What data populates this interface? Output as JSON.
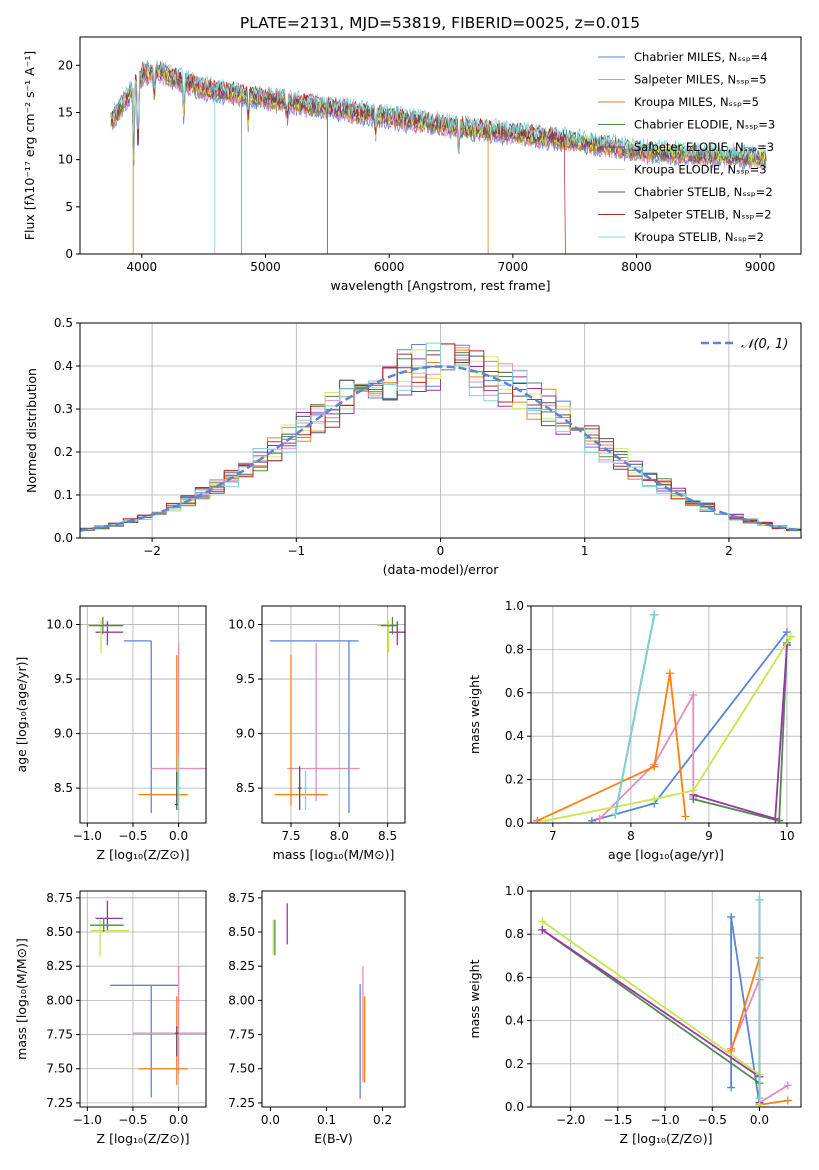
{
  "figure": {
    "title": "PLATE=2131, MJD=53819, FIBERID=0025, z=0.015"
  },
  "chart_data": [
    {
      "id": "spectrum",
      "type": "line",
      "xlabel": "wavelength [Angstrom, rest frame]",
      "ylabel": "Flux [fλ10⁻¹⁷ erg cm⁻² s⁻¹ A⁻¹]",
      "xlim": [
        3500,
        9330
      ],
      "ylim": [
        0,
        23
      ],
      "xticks": [
        4000,
        5000,
        6000,
        7000,
        8000,
        9000
      ],
      "yticks": [
        0,
        5,
        10,
        15,
        20
      ],
      "grid": false,
      "legend": "top-right",
      "series": [
        {
          "name": "Chabrier MILES, Nₛₛₚ=4",
          "color": "#5b84d6"
        },
        {
          "name": "Salpeter MILES, Nₛₛₚ=5",
          "color": "#e88bbd"
        },
        {
          "name": "Kroupa MILES, Nₛₛₚ=5",
          "color": "#c8842a"
        },
        {
          "name": "Chabrier ELODIE, Nₛₛₚ=3",
          "color": "#4d8b4d"
        },
        {
          "name": "Salpeter ELODIE, Nₛₛₚ=3",
          "color": "#9b35a8"
        },
        {
          "name": "Kroupa ELODIE, Nₛₛₚ=3",
          "color": "#e0e64a"
        },
        {
          "name": "Chabrier STELIB, Nₛₛₚ=2",
          "color": "#555555"
        },
        {
          "name": "Salpeter STELIB, Nₛₛₚ=2",
          "color": "#b22a2a"
        },
        {
          "name": "Kroupa STELIB, Nₛₛₚ=2",
          "color": "#7fd3d9"
        }
      ],
      "data": {
        "x": [
          3750,
          4000,
          4100,
          4500,
          5000,
          5500,
          6000,
          6500,
          7000,
          7500,
          8000,
          8500,
          9050
        ],
        "y": [
          14.0,
          19.0,
          19.5,
          17.5,
          16.5,
          15.5,
          14.5,
          13.5,
          12.8,
          12.0,
          11.0,
          10.5,
          10.2
        ]
      }
    },
    {
      "id": "residuals",
      "type": "line",
      "xlabel": "(data-model)/error",
      "ylabel": "Normed distribution",
      "xlim": [
        -2.5,
        2.5
      ],
      "ylim": [
        0,
        0.5
      ],
      "xticks": [
        -2,
        -1,
        0,
        1,
        2
      ],
      "yticks": [
        0.0,
        0.1,
        0.2,
        0.3,
        0.4,
        0.5
      ],
      "grid": true,
      "legend": "top-right",
      "normal_label": "𝒩(0, 1)",
      "normal_color": "#5b84d6"
    },
    {
      "id": "age-vs-z",
      "type": "scatter",
      "xlabel": "Z [log₁₀(Z/Z⊙)]",
      "ylabel": "age  [log₁₀(age/yr)]",
      "xlim": [
        -1.08,
        0.3
      ],
      "ylim": [
        8.18,
        10.17
      ],
      "xticks": [
        -1.0,
        -0.5,
        0.0
      ],
      "yticks": [
        8.5,
        9.0,
        9.5,
        10.0
      ],
      "grid": true,
      "points": [
        {
          "x": -0.3,
          "y": 9.85,
          "x_err": [
            0.3,
            0
          ],
          "y_err": [
            1.58,
            0
          ],
          "color": "#5b84d6"
        },
        {
          "x": 0.0,
          "y": 8.68,
          "x_err": [
            0.3,
            0.3
          ],
          "y_err": [
            0.3,
            1.15
          ],
          "color": "#e88bbd"
        },
        {
          "x": -0.02,
          "y": 8.44,
          "x_err": [
            0.42,
            0.12
          ],
          "y_err": [
            0.1,
            1.28
          ],
          "color": "#ff7f0e"
        },
        {
          "x": -0.78,
          "y": 9.93,
          "x_err": [
            0.13,
            0.17
          ],
          "y_err": [
            0.12,
            0.1
          ],
          "color": "#9b35a8"
        },
        {
          "x": -0.85,
          "y": 9.99,
          "x_err": [
            0.15,
            0.25
          ],
          "y_err": [
            0.25,
            0.05
          ],
          "color": "#c6e64a"
        },
        {
          "x": -0.83,
          "y": 9.99,
          "x_err": [
            0.15,
            0.22
          ],
          "y_err": [
            0.08,
            0.08
          ],
          "color": "#4d8b4d"
        },
        {
          "x": -0.02,
          "y": 8.35,
          "x_err": [
            0.02,
            0.02
          ],
          "y_err": [
            0.05,
            0.3
          ],
          "color": "#555555"
        },
        {
          "x": 0.0,
          "y": 8.5,
          "x_err": [
            0.02,
            0.02
          ],
          "y_err": [
            0.2,
            0.3
          ],
          "color": "#7fd3d9"
        }
      ]
    },
    {
      "id": "age-vs-mass",
      "type": "scatter",
      "xlabel": "mass [log₁₀(M/M⊙)]",
      "ylabel": "",
      "xlim": [
        7.2,
        8.68
      ],
      "ylim": [
        8.18,
        10.17
      ],
      "xticks": [
        7.5,
        8.0,
        8.5
      ],
      "yticks": [
        8.5,
        9.0,
        9.5,
        10.0
      ],
      "grid": true,
      "points": [
        {
          "x": 8.1,
          "y": 9.85,
          "x_err": [
            0.82,
            0.1
          ],
          "y_err": [
            1.58,
            0
          ],
          "color": "#5b84d6"
        },
        {
          "x": 7.76,
          "y": 8.68,
          "x_err": [
            0.3,
            0.45
          ],
          "y_err": [
            0.3,
            1.15
          ],
          "color": "#e88bbd"
        },
        {
          "x": 7.5,
          "y": 8.44,
          "x_err": [
            0.17,
            0.38
          ],
          "y_err": [
            0.1,
            1.28
          ],
          "color": "#ff7f0e"
        },
        {
          "x": 8.6,
          "y": 9.93,
          "x_err": [
            0.09,
            0.1
          ],
          "y_err": [
            0.12,
            0.1
          ],
          "color": "#9b35a8"
        },
        {
          "x": 8.51,
          "y": 9.99,
          "x_err": [
            0.12,
            0.06
          ],
          "y_err": [
            0.25,
            0.05
          ],
          "color": "#c6e64a"
        },
        {
          "x": 8.55,
          "y": 9.99,
          "x_err": [
            0.12,
            0.05
          ],
          "y_err": [
            0.08,
            0.08
          ],
          "color": "#4d8b4d"
        },
        {
          "x": 7.59,
          "y": 8.5,
          "x_err": [
            0.02,
            0.02
          ],
          "y_err": [
            0.2,
            0.2
          ],
          "color": "#555555"
        },
        {
          "x": 7.65,
          "y": 8.5,
          "x_err": [
            0.02,
            0.02
          ],
          "y_err": [
            0.2,
            0.16
          ],
          "color": "#7fd3d9"
        }
      ]
    },
    {
      "id": "weight-vs-age",
      "type": "line",
      "xlabel": "age  [log₁₀(age/yr)]",
      "ylabel": "mass weight",
      "xlim": [
        6.72,
        10.18
      ],
      "ylim": [
        0,
        1.0
      ],
      "xticks": [
        7,
        8,
        9,
        10
      ],
      "yticks": [
        0.0,
        0.2,
        0.4,
        0.6,
        0.8,
        1.0
      ],
      "grid": true,
      "series": [
        {
          "color": "#5b84d6",
          "x": [
            7.5,
            8.3,
            10.0
          ],
          "y": [
            0.01,
            0.09,
            0.88
          ]
        },
        {
          "color": "#e88bbd",
          "x": [
            7.6,
            8.3,
            8.8,
            8.8
          ],
          "y": [
            0.02,
            0.27,
            0.59,
            0.12
          ]
        },
        {
          "color": "#ff7f0e",
          "x": [
            6.8,
            8.3,
            8.5,
            8.7
          ],
          "y": [
            0.01,
            0.26,
            0.69,
            0.03
          ]
        },
        {
          "color": "#4d8b4d",
          "x": [
            8.8,
            9.9,
            10.0
          ],
          "y": [
            0.11,
            0.01,
            0.83
          ]
        },
        {
          "color": "#9b35a8",
          "x": [
            8.8,
            9.85,
            10.0
          ],
          "y": [
            0.13,
            0.02,
            0.82
          ]
        },
        {
          "color": "#c6e64a",
          "x": [
            6.9,
            8.3,
            8.8,
            10.05
          ],
          "y": [
            0.01,
            0.11,
            0.15,
            0.86
          ]
        },
        {
          "color": "#555555",
          "x": [
            7.8,
            8.3
          ],
          "y": [
            0.04,
            0.96
          ]
        },
        {
          "color": "#7fd3d9",
          "x": [
            7.8,
            8.3
          ],
          "y": [
            0.04,
            0.96
          ]
        }
      ]
    },
    {
      "id": "mass-vs-z",
      "type": "scatter",
      "xlabel": "Z [log₁₀(Z/Z⊙)]",
      "ylabel": "mass [log₁₀(M/M⊙)]",
      "xlim": [
        -1.08,
        0.3
      ],
      "ylim": [
        7.22,
        8.8
      ],
      "xticks": [
        -1.0,
        -0.5,
        0.0
      ],
      "yticks": [
        7.25,
        7.5,
        7.75,
        8.0,
        8.25,
        8.5,
        8.75
      ],
      "grid": true,
      "points": [
        {
          "x": -0.3,
          "y": 8.11,
          "x_err": [
            0.45,
            0.3
          ],
          "y_err": [
            0.82,
            0.0
          ],
          "color": "#5b84d6"
        },
        {
          "x": 0.0,
          "y": 7.76,
          "x_err": [
            0.5,
            0.3
          ],
          "y_err": [
            0.3,
            0.49
          ],
          "color": "#e88bbd"
        },
        {
          "x": -0.02,
          "y": 7.5,
          "x_err": [
            0.42,
            0.12
          ],
          "y_err": [
            0.12,
            0.53
          ],
          "color": "#ff7f0e"
        },
        {
          "x": -0.78,
          "y": 8.6,
          "x_err": [
            0.13,
            0.17
          ],
          "y_err": [
            0.09,
            0.13
          ],
          "color": "#9b35a8"
        },
        {
          "x": -0.86,
          "y": 8.51,
          "x_err": [
            0.1,
            0.32
          ],
          "y_err": [
            0.19,
            0.08
          ],
          "color": "#c6e64a"
        },
        {
          "x": -0.82,
          "y": 8.55,
          "x_err": [
            0.15,
            0.22
          ],
          "y_err": [
            0.05,
            0.05
          ],
          "color": "#4d8b4d"
        },
        {
          "x": -0.02,
          "y": 7.76,
          "x_err": [
            0.02,
            0.02
          ],
          "y_err": [
            0.17,
            0.05
          ],
          "color": "#555555"
        }
      ]
    },
    {
      "id": "mass-vs-ebv",
      "type": "scatter",
      "xlabel": "E(B-V)",
      "ylabel": "",
      "xlim": [
        -0.015,
        0.24
      ],
      "ylim": [
        7.22,
        8.8
      ],
      "xticks": [
        0.0,
        0.1,
        0.2
      ],
      "yticks": [
        7.25,
        7.5,
        7.75,
        8.0,
        8.25,
        8.5,
        8.75
      ],
      "grid": false,
      "points": [
        {
          "x": 0.16,
          "y": 7.7,
          "x_err": [
            0,
            0
          ],
          "y_err": [
            0.42,
            0.42
          ],
          "color": "#5b84d6"
        },
        {
          "x": 0.165,
          "y": 7.95,
          "x_err": [
            0,
            0
          ],
          "y_err": [
            0.55,
            0.3
          ],
          "color": "#e88bbd"
        },
        {
          "x": 0.168,
          "y": 7.7,
          "x_err": [
            0,
            0
          ],
          "y_err": [
            0.3,
            0.33
          ],
          "color": "#ff7f0e"
        },
        {
          "x": 0.03,
          "y": 8.55,
          "x_err": [
            0,
            0
          ],
          "y_err": [
            0.14,
            0.16
          ],
          "color": "#9b35a8"
        },
        {
          "x": 0.005,
          "y": 8.45,
          "x_err": [
            0,
            0
          ],
          "y_err": [
            0.12,
            0.14
          ],
          "color": "#c6e64a"
        },
        {
          "x": 0.008,
          "y": 8.45,
          "x_err": [
            0,
            0
          ],
          "y_err": [
            0.12,
            0.14
          ],
          "color": "#4d8b4d"
        }
      ]
    },
    {
      "id": "weight-vs-z",
      "type": "line",
      "xlabel": "Z [log₁₀(Z/Z⊙)]",
      "ylabel": "mass weight",
      "xlim": [
        -2.42,
        0.44
      ],
      "ylim": [
        0,
        1.0
      ],
      "xticks": [
        -2.0,
        -1.5,
        -1.0,
        -0.5,
        0.0
      ],
      "yticks": [
        0.0,
        0.2,
        0.4,
        0.6,
        0.8,
        1.0
      ],
      "grid": true,
      "series": [
        {
          "color": "#5b84d6",
          "x": [
            -0.3,
            -0.3,
            0.0
          ],
          "y": [
            0.09,
            0.88,
            0.01
          ]
        },
        {
          "color": "#e88bbd",
          "x": [
            -0.3,
            0.0,
            0.0,
            0.3
          ],
          "y": [
            0.27,
            0.59,
            0.02,
            0.1
          ]
        },
        {
          "color": "#ff7f0e",
          "x": [
            -0.3,
            0.0,
            0.0,
            0.3
          ],
          "y": [
            0.26,
            0.69,
            0.01,
            0.03
          ]
        },
        {
          "color": "#4d8b4d",
          "x": [
            -2.3,
            0.0,
            0.0
          ],
          "y": [
            0.82,
            0.11,
            0.01
          ]
        },
        {
          "color": "#9b35a8",
          "x": [
            -2.3,
            0.0,
            0.0
          ],
          "y": [
            0.82,
            0.14,
            0.02
          ]
        },
        {
          "color": "#c6e64a",
          "x": [
            -2.3,
            0.0,
            0.0
          ],
          "y": [
            0.86,
            0.15,
            0.01
          ]
        },
        {
          "color": "#555555",
          "x": [
            0.0,
            0.0
          ],
          "y": [
            0.04,
            0.96
          ]
        },
        {
          "color": "#7fd3d9",
          "x": [
            0.0,
            0.0
          ],
          "y": [
            0.04,
            0.96
          ]
        }
      ]
    }
  ]
}
